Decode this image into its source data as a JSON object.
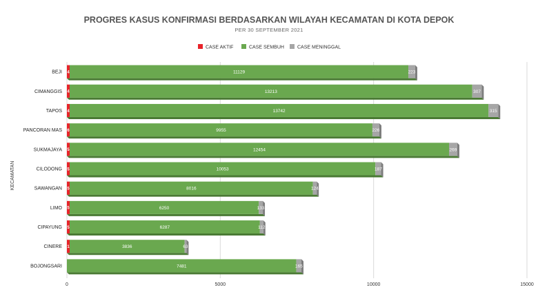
{
  "chart_data": {
    "type": "bar",
    "orientation": "horizontal",
    "stacked": true,
    "title": "PROGRES KASUS KONFIRMASI BERDASARKAN WILAYAH KECAMATAN DI KOTA DEPOK",
    "subtitle": "PER 30 SEPTEMBER 2021",
    "ylabel": "KECAMATAN",
    "xlabel": "",
    "xlim": [
      0,
      15000
    ],
    "xticks": [
      0,
      5000,
      10000,
      15000
    ],
    "grid": true,
    "legend_position": "top",
    "categories": [
      "BEJI",
      "CIMANGGIS",
      "TAPOS",
      "PANCORAN MAS",
      "SUKMAJAYA",
      "CILODONG",
      "SAWANGAN",
      "LIMO",
      "CIPAYUNG",
      "CINERE",
      "BOJONGSARI"
    ],
    "series": [
      {
        "name": "CASE AKTIF",
        "color": "#e8232a",
        "values": [
          4,
          4,
          4,
          6,
          5,
          5,
          5,
          5,
          5,
          1,
          0
        ]
      },
      {
        "name": "CASE SEMBUH",
        "color": "#6aa84f",
        "values": [
          11129,
          13213,
          13742,
          9955,
          12454,
          10053,
          8016,
          6250,
          6287,
          3836,
          7481
        ]
      },
      {
        "name": "CASE MENINGGAL",
        "color": "#a6a6a6",
        "values": [
          223,
          307,
          315,
          226,
          269,
          187,
          124,
          133,
          112,
          63,
          165
        ]
      }
    ]
  }
}
